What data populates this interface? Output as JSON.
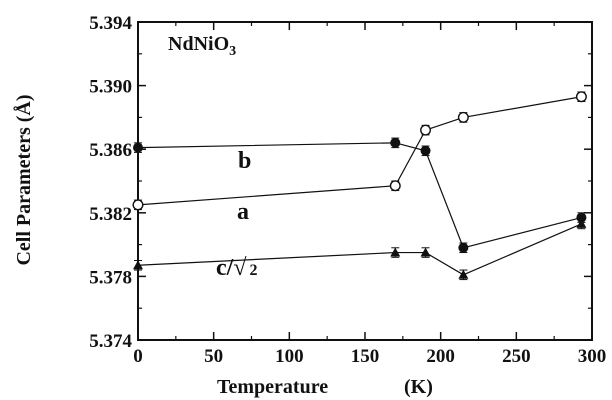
{
  "chart_data": {
    "type": "line",
    "title": "NdNiO",
    "title_subscript": "3",
    "xlabel": "Temperature",
    "xlabel_unit": "(K)",
    "ylabel": "Cell Parameters (Å)",
    "xlim": [
      0,
      300
    ],
    "ylim": [
      5.374,
      5.394
    ],
    "xticks": [
      0,
      50,
      100,
      150,
      200,
      250,
      300
    ],
    "xtick_labels": [
      "0",
      "50",
      "100",
      "150",
      "200",
      "250",
      "300"
    ],
    "yticks": [
      5.374,
      5.378,
      5.382,
      5.386,
      5.39,
      5.394
    ],
    "ytick_labels": [
      "5.374",
      "5.378",
      "5.382",
      "5.386",
      "5.390",
      "5.394"
    ],
    "grid": false,
    "series": [
      {
        "name": "a",
        "marker": "open-circle",
        "color": "#111111",
        "x": [
          0,
          170,
          190,
          215,
          293
        ],
        "y": [
          5.3825,
          5.3837,
          5.3872,
          5.388,
          5.3893
        ],
        "err": [
          0.0003,
          0.0003,
          0.0003,
          0.0003,
          0.0003
        ]
      },
      {
        "name": "b",
        "marker": "filled-circle",
        "color": "#111111",
        "x": [
          0,
          170,
          190,
          215,
          293
        ],
        "y": [
          5.3861,
          5.3864,
          5.3859,
          5.3798,
          5.3817
        ],
        "err": [
          0.0003,
          0.0003,
          0.0003,
          0.0003,
          0.0003
        ]
      },
      {
        "name": "c/√2",
        "label_text": "c/",
        "label_radical": "√",
        "label_sub": "2",
        "marker": "filled-triangle",
        "color": "#111111",
        "x": [
          0,
          170,
          190,
          215,
          293
        ],
        "y": [
          5.3787,
          5.3795,
          5.3795,
          5.3781,
          5.3813
        ],
        "err": [
          0.0003,
          0.0003,
          0.0003,
          0.0003,
          0.0003
        ]
      }
    ]
  }
}
